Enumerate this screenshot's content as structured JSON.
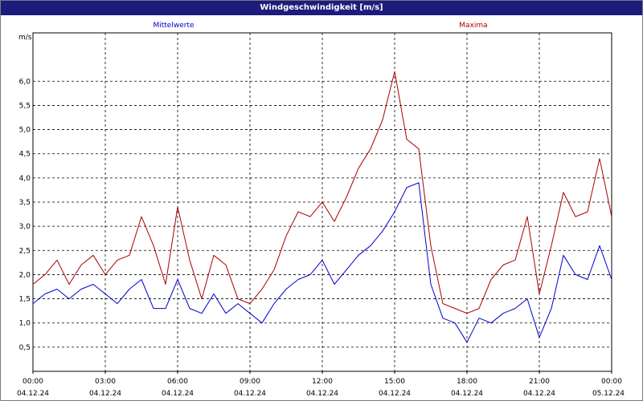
{
  "window": {
    "title": "Windgeschwindigkeit [m/s]"
  },
  "chart_data": {
    "type": "line",
    "title": "Windgeschwindigkeit [m/s]",
    "ylabel": "m/s",
    "ylim": [
      0,
      7
    ],
    "yticks": [
      "0,5",
      "1,0",
      "1,5",
      "2,0",
      "2,5",
      "3,0",
      "3,5",
      "4,0",
      "4,5",
      "5,0",
      "5,5",
      "6,0"
    ],
    "ytick_values": [
      0.5,
      1.0,
      1.5,
      2.0,
      2.5,
      3.0,
      3.5,
      4.0,
      4.5,
      5.0,
      5.5,
      6.0
    ],
    "xticks": [
      {
        "time": "00:00",
        "date": "04.12.24"
      },
      {
        "time": "03:00",
        "date": "04.12.24"
      },
      {
        "time": "06:00",
        "date": "04.12.24"
      },
      {
        "time": "09:00",
        "date": "04.12.24"
      },
      {
        "time": "12:00",
        "date": "04.12.24"
      },
      {
        "time": "15:00",
        "date": "04.12.24"
      },
      {
        "time": "18:00",
        "date": "04.12.24"
      },
      {
        "time": "21:00",
        "date": "04.12.24"
      },
      {
        "time": "00:00",
        "date": "05.12.24"
      }
    ],
    "x_hours": [
      0,
      0.5,
      1,
      1.5,
      2,
      2.5,
      3,
      3.5,
      4,
      4.5,
      5,
      5.5,
      6,
      6.5,
      7,
      7.5,
      8,
      8.5,
      9,
      9.5,
      10,
      10.5,
      11,
      11.5,
      12,
      12.5,
      13,
      13.5,
      14,
      14.5,
      15,
      15.5,
      16,
      16.5,
      17,
      17.5,
      18,
      18.5,
      19,
      19.5,
      20,
      20.5,
      21,
      21.5,
      22,
      22.5,
      23,
      23.5,
      24
    ],
    "grid": true,
    "legend": "top",
    "series": [
      {
        "name": "Mittelwerte",
        "color": "#0000cc",
        "values": [
          1.4,
          1.6,
          1.7,
          1.5,
          1.7,
          1.8,
          1.6,
          1.4,
          1.7,
          1.9,
          1.3,
          1.3,
          1.9,
          1.3,
          1.2,
          1.6,
          1.2,
          1.4,
          1.2,
          1.0,
          1.4,
          1.7,
          1.9,
          2.0,
          2.3,
          1.8,
          2.1,
          2.4,
          2.6,
          2.9,
          3.3,
          3.8,
          3.9,
          1.8,
          1.1,
          1.0,
          0.6,
          1.1,
          1.0,
          1.2,
          1.3,
          1.5,
          0.7,
          1.3,
          2.4,
          2.0,
          1.9,
          2.6,
          1.9
        ]
      },
      {
        "name": "Maxima",
        "color": "#aa0000",
        "values": [
          1.8,
          2.0,
          2.3,
          1.8,
          2.2,
          2.4,
          2.0,
          2.3,
          2.4,
          3.2,
          2.6,
          1.8,
          3.4,
          2.3,
          1.5,
          2.4,
          2.2,
          1.5,
          1.4,
          1.7,
          2.1,
          2.8,
          3.3,
          3.2,
          3.5,
          3.1,
          3.6,
          4.2,
          4.6,
          5.2,
          6.2,
          4.8,
          4.6,
          2.6,
          1.4,
          1.3,
          1.2,
          1.3,
          1.9,
          2.2,
          2.3,
          3.2,
          1.6,
          2.6,
          3.7,
          3.2,
          3.3,
          4.4,
          3.2
        ]
      }
    ]
  }
}
